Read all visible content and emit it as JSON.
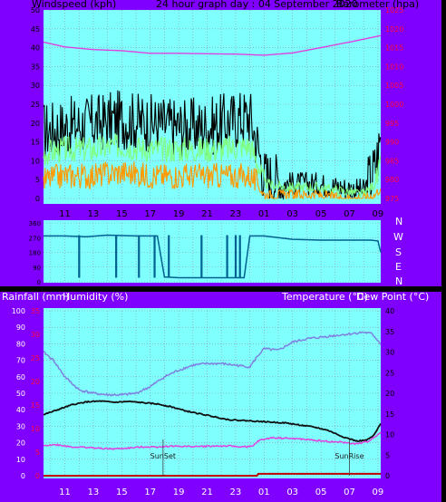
{
  "header": {
    "wind_label": "Windspeed (kph)",
    "title": "24 hour graph day : 04 September 2020",
    "baro_label": "Barometer (hpa)",
    "rain_label": "Rainfall (mm)",
    "humidity_label": "Humidity (%)",
    "temp_label": "Temperature (°C)",
    "dew_label": "Dew Point (°C)"
  },
  "colors": {
    "frame": "#7f00ff",
    "plot_bg": "#80ffff",
    "grid": "#9090a0",
    "gust": "#000000",
    "avg_wind": "#80ff80",
    "min_wind": "#ff9900",
    "barometer": "#e040e0",
    "wind_dir": "#006090",
    "humidity": "#8080e0",
    "temperature": "#101010",
    "dewpoint": "#e040e0",
    "rain": "#c00000",
    "axis_text": "#000000",
    "right_axis_text": "#ff0040"
  },
  "x_ticks": [
    "11",
    "13",
    "15",
    "17",
    "19",
    "21",
    "23",
    "01",
    "03",
    "05",
    "07",
    "09"
  ],
  "wind_dir_labels": [
    "N",
    "W",
    "S",
    "E",
    "N"
  ],
  "wind_dir_ticks": [
    "360",
    "270",
    "180",
    "90",
    "0"
  ],
  "annotations": {
    "sunset": "SunSet",
    "sunrise": "SunRise"
  },
  "chart_data": [
    {
      "type": "line",
      "name": "wind-baro",
      "title": "24 hour graph day : 04 September 2020",
      "ylabel_left": "Windspeed (kph)",
      "ylabel_right": "Barometer (hpa)",
      "xlim": [
        9.5,
        33.2
      ],
      "ylim_left": [
        0,
        50
      ],
      "ylim_right": [
        975,
        1025
      ],
      "yticks_left": [
        0,
        5,
        10,
        15,
        20,
        25,
        30,
        35,
        40,
        45,
        50
      ],
      "yticks_right": [
        975,
        980,
        985,
        990,
        995,
        1000,
        1005,
        1010,
        1015,
        1020,
        1025
      ],
      "series": [
        {
          "axis": "right",
          "x": [
            9.5,
            11,
            13,
            15,
            17,
            19,
            21,
            23,
            25,
            27,
            29,
            31,
            33.2
          ],
          "values": [
            1016.5,
            1015.2,
            1014.5,
            1014.2,
            1013.5,
            1013.5,
            1013.4,
            1013.3,
            1013.0,
            1013.6,
            1015.0,
            1016.5,
            1018.2
          ]
        }
      ],
      "wind_bands": [
        {
          "x": [
            9.5,
            11,
            13,
            15,
            17,
            19,
            21,
            22,
            24,
            24.5,
            25,
            26.5,
            28.5,
            30.5,
            32,
            32.8,
            33.2
          ],
          "gust": [
            18,
            19,
            20,
            21,
            20,
            19,
            19,
            20,
            22,
            15,
            6,
            4,
            4,
            3,
            2,
            8,
            16
          ],
          "avg": [
            12,
            13,
            13,
            14,
            13,
            13,
            13,
            13,
            14,
            10,
            4,
            3,
            3,
            2,
            1,
            4,
            8
          ],
          "min": [
            5,
            6,
            6,
            7,
            6,
            6,
            6,
            6,
            6,
            4,
            1,
            1,
            1,
            0,
            0,
            1,
            3
          ]
        }
      ]
    },
    {
      "type": "line",
      "name": "wind-direction",
      "xlim": [
        9.5,
        33.2
      ],
      "ylim": [
        0,
        360
      ],
      "yticks": [
        0,
        90,
        180,
        270,
        360
      ],
      "series": [
        {
          "x": [
            9.5,
            11,
            12.5,
            14,
            16,
            17.5,
            18,
            19,
            21,
            22,
            23,
            23.6,
            24,
            25,
            27,
            29,
            31,
            32.5,
            33,
            33.2
          ],
          "values": [
            280,
            280,
            275,
            285,
            280,
            280,
            30,
            25,
            25,
            25,
            25,
            25,
            280,
            280,
            260,
            255,
            255,
            255,
            250,
            180
          ]
        }
      ],
      "step_drops_x": [
        12.0,
        14.6,
        16.2,
        17.3,
        18.3,
        20.6,
        22.4,
        23.0,
        23.3
      ]
    },
    {
      "type": "line",
      "name": "temp-humidity",
      "ylabel_left": "Humidity (%)",
      "ylabel_left2": "Rainfall (mm)",
      "ylabel_right": "Temperature (°C)",
      "xlim": [
        9.5,
        33.2
      ],
      "ylim_left": [
        0,
        100
      ],
      "ylim_left2": [
        0,
        35
      ],
      "ylim_right": [
        0,
        40
      ],
      "yticks_left": [
        0,
        10,
        20,
        30,
        40,
        50,
        60,
        70,
        80,
        90,
        100
      ],
      "yticks_left2": [
        0,
        5,
        10,
        15,
        20,
        25,
        30,
        35
      ],
      "yticks_right": [
        0,
        5,
        10,
        15,
        20,
        25,
        30,
        35,
        40
      ],
      "series": [
        {
          "name": "Humidity (%)",
          "axis": "left",
          "x": [
            9.5,
            10.2,
            11,
            12,
            13,
            14,
            15,
            16,
            17,
            18,
            19,
            20,
            21,
            22,
            23,
            24,
            24.5,
            25,
            26,
            27,
            28,
            29,
            30,
            31,
            32,
            32.6,
            33.2
          ],
          "values": [
            75,
            70,
            60,
            52,
            50,
            49,
            49,
            50,
            54,
            60,
            64,
            67,
            68,
            68,
            67,
            66,
            72,
            77,
            76,
            81,
            83,
            84,
            85,
            86,
            87,
            86,
            80
          ]
        },
        {
          "name": "Temperature (°C)",
          "axis": "right",
          "x": [
            9.5,
            10.5,
            11.5,
            12.5,
            13.5,
            14.5,
            15.5,
            16.5,
            17.5,
            18.5,
            19.5,
            20.5,
            21.5,
            22.5,
            23.5,
            24.5,
            25.5,
            26.5,
            27.5,
            28.5,
            29.5,
            30.5,
            31.5,
            32.2,
            32.7,
            33.2
          ],
          "values": [
            14.8,
            16.0,
            17.2,
            17.9,
            18.1,
            17.8,
            18.0,
            17.7,
            17.4,
            16.7,
            15.7,
            15.0,
            14.3,
            13.6,
            13.4,
            13.2,
            13.0,
            12.8,
            12.3,
            11.8,
            11.0,
            9.5,
            8.4,
            8.6,
            9.7,
            12.6
          ]
        },
        {
          "name": "Dew Point (°C)",
          "axis": "right",
          "x": [
            9.5,
            10.5,
            11.5,
            12.5,
            13.5,
            14.5,
            15.5,
            16.5,
            17.5,
            18.5,
            19.5,
            20.5,
            21.5,
            22.5,
            23.5,
            24.2,
            24.6,
            25.5,
            26.5,
            27.5,
            28.5,
            29.5,
            30.5,
            31.5,
            32.3,
            33.2
          ],
          "values": [
            7.4,
            7.5,
            7.0,
            6.9,
            6.6,
            6.5,
            6.7,
            7.0,
            7.0,
            7.2,
            7.1,
            7.1,
            7.2,
            7.2,
            7.0,
            7.1,
            8.5,
            9.2,
            9.1,
            8.9,
            8.6,
            8.3,
            8.1,
            7.7,
            8.3,
            10.5
          ]
        },
        {
          "name": "Rainfall (mm)",
          "axis": "left2",
          "x": [
            9.5,
            24.5,
            24.6,
            33.2
          ],
          "values": [
            0,
            0,
            0.4,
            0.4
          ]
        }
      ]
    }
  ]
}
